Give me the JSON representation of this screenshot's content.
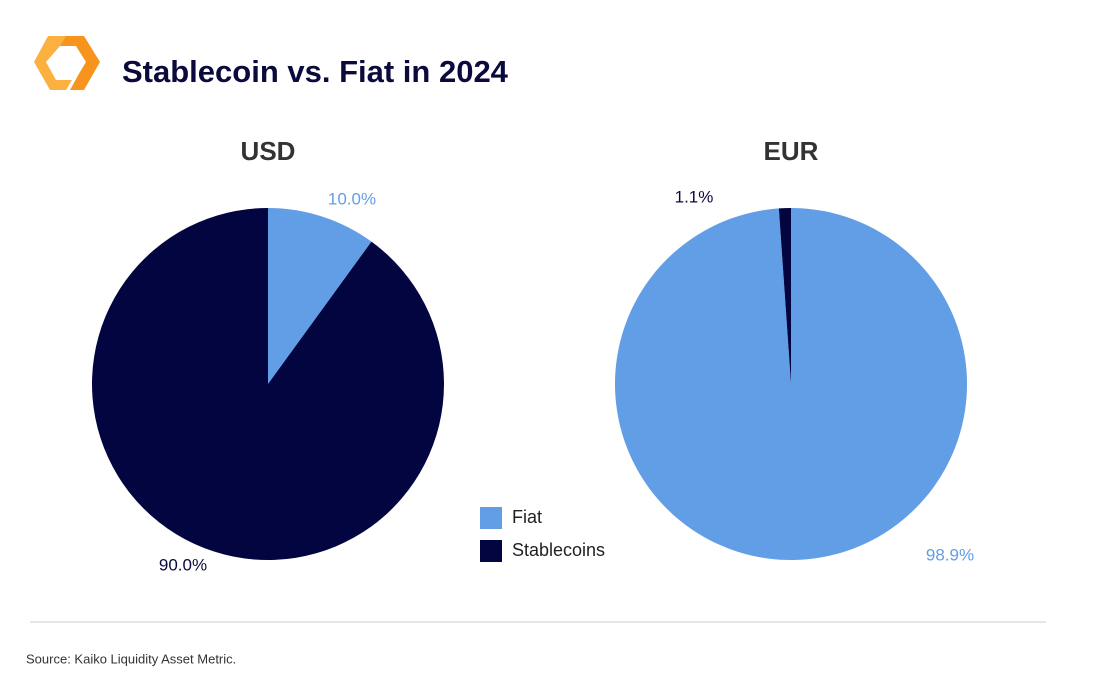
{
  "title": "Stablecoin vs. Fiat in 2024",
  "source": "Source: Kaiko Liquidity Asset Metric.",
  "chart_data": [
    {
      "type": "pie",
      "title": "USD",
      "categories": [
        "Fiat",
        "Stablecoins"
      ],
      "values": [
        10.0,
        90.0
      ],
      "value_labels": [
        "10.0%",
        "90.0%"
      ],
      "colors": [
        "#629ee6",
        "#020540"
      ]
    },
    {
      "type": "pie",
      "title": "EUR",
      "categories": [
        "Fiat",
        "Stablecoins"
      ],
      "values": [
        98.9,
        1.1
      ],
      "value_labels": [
        "98.9%",
        "1.1%"
      ],
      "colors": [
        "#629ee6",
        "#020540"
      ]
    }
  ]
}
